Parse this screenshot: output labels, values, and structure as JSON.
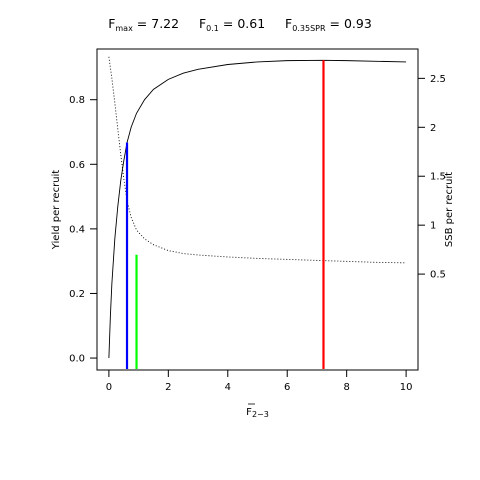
{
  "chart_data": {
    "type": "line",
    "title_parts": [
      {
        "symbol": "F",
        "subscript": "max",
        "equals": " = ",
        "value": "7.22"
      },
      {
        "symbol": "F",
        "subscript": "0.1",
        "equals": " = ",
        "value": "0.61"
      },
      {
        "symbol": "F",
        "subscript": "0.35SPR",
        "equals": " = ",
        "value": "0.93"
      }
    ],
    "xlabel": {
      "main": "F",
      "subscript": "2−3"
    },
    "ylabel_left": "Yield per recruit",
    "ylabel_right": "SSB per recruit",
    "xlim": [
      -0.4,
      10.4
    ],
    "ylim_left": [
      -0.037,
      0.957
    ],
    "ylim_right": [
      -0.48,
      2.8
    ],
    "x_ticks": [
      0,
      2,
      4,
      6,
      8,
      10
    ],
    "x_tick_labels": [
      "0",
      "2",
      "4",
      "6",
      "8",
      "10"
    ],
    "y_left_ticks": [
      0.0,
      0.2,
      0.4,
      0.6,
      0.8
    ],
    "y_left_tick_labels": [
      "0.0",
      "0.2",
      "0.4",
      "0.6",
      "0.8"
    ],
    "y_right_ticks": [
      0.5,
      1,
      1.5,
      2,
      2.5
    ],
    "y_right_tick_labels": [
      "0.5",
      "1",
      "1.5",
      "2",
      "2.5"
    ],
    "series": [
      {
        "name": "Yield per recruit",
        "axis": "left",
        "style": "solid",
        "color": "#000000",
        "x": [
          0,
          0.05,
          0.1,
          0.2,
          0.3,
          0.4,
          0.5,
          0.61,
          0.75,
          0.93,
          1.2,
          1.5,
          2,
          2.5,
          3,
          4,
          5,
          6,
          7.22,
          8,
          9,
          10
        ],
        "y": [
          0,
          0.13,
          0.23,
          0.37,
          0.47,
          0.55,
          0.61,
          0.667,
          0.715,
          0.758,
          0.8,
          0.832,
          0.863,
          0.882,
          0.894,
          0.909,
          0.917,
          0.921,
          0.922,
          0.921,
          0.919,
          0.917
        ]
      },
      {
        "name": "SSB per recruit",
        "axis": "right",
        "style": "dotted",
        "color": "#000000",
        "x": [
          0,
          0.1,
          0.2,
          0.3,
          0.4,
          0.5,
          0.61,
          0.75,
          0.93,
          1.2,
          1.5,
          2,
          2.5,
          3,
          4,
          5,
          6,
          7,
          8,
          9,
          10
        ],
        "y": [
          2.72,
          2.5,
          2.25,
          1.98,
          1.72,
          1.48,
          1.25,
          1.08,
          0.95,
          0.86,
          0.8,
          0.74,
          0.71,
          0.695,
          0.675,
          0.66,
          0.65,
          0.64,
          0.63,
          0.62,
          0.615
        ]
      }
    ],
    "reference_lines": [
      {
        "name": "F0.1",
        "x": 0.61,
        "y_top": 0.667,
        "color": "#0000ff"
      },
      {
        "name": "F0.35SPR",
        "x": 0.93,
        "y_top": 0.32,
        "color": "#00ff00"
      },
      {
        "name": "Fmax",
        "x": 7.22,
        "y_top": 0.922,
        "color": "#ff0000"
      }
    ],
    "grid": false,
    "legend": "none"
  }
}
